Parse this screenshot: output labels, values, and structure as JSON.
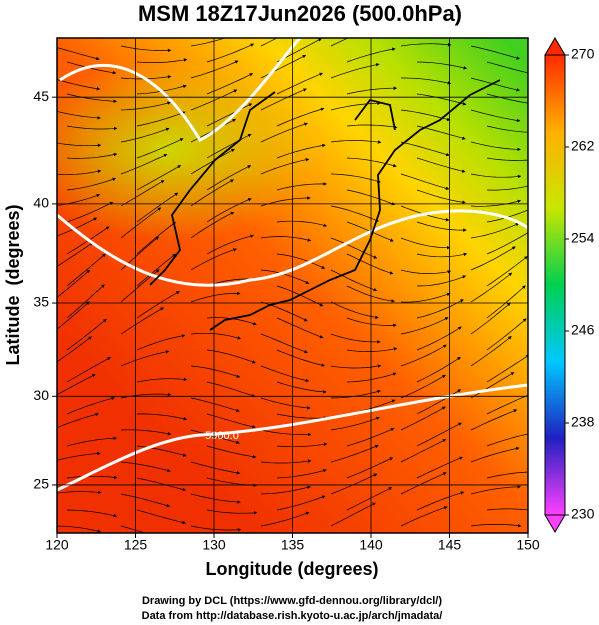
{
  "map": {
    "title": "MSM 18Z17Jun2026 (500.0hPa)",
    "x_label": "Longitude (degrees)",
    "y_label": "Latitude  (degrees)",
    "xlim": [
      120,
      150
    ],
    "ylim": [
      22.2,
      47.6
    ],
    "y_scale": "mercator",
    "xticks": [
      120,
      125,
      130,
      135,
      140,
      145,
      150
    ],
    "yticks": [
      25,
      30,
      35,
      40,
      45
    ],
    "grid": true,
    "colorbar": {
      "lim": [
        230,
        270
      ],
      "ticks": [
        230,
        238,
        246,
        254,
        262,
        270
      ],
      "colors": [
        "#ff40ff",
        "#2020c0",
        "#00c8ff",
        "#00d050",
        "#c8e600",
        "#ffb000",
        "#ff2a00"
      ]
    },
    "contour_labels": [
      "5900.0"
    ]
  },
  "footer": [
    "Drawing by DCL (https://www.gfd-dennou.org/library/dcl/)",
    "Data from http://database.rish.kyoto-u.ac.jp/arch/jmadata/"
  ]
}
